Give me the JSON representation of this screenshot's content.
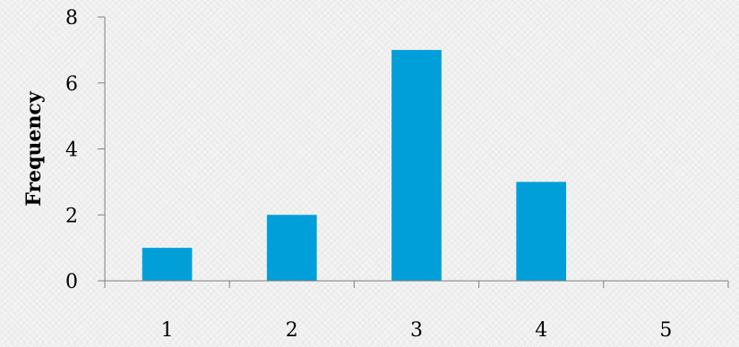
{
  "chart_data": {
    "type": "bar",
    "title": "",
    "xlabel": "",
    "ylabel": "Frequency",
    "categories": [
      "1",
      "2",
      "3",
      "4",
      "5"
    ],
    "values": [
      1,
      2,
      7,
      3,
      0
    ],
    "ylim": [
      0,
      8
    ],
    "yticks": [
      0,
      2,
      4,
      6,
      8
    ],
    "grid": false,
    "legend": "none",
    "bar_color": "#009fda",
    "axis_color": "#7f7f7f",
    "background_color": "#f3f3f3"
  }
}
